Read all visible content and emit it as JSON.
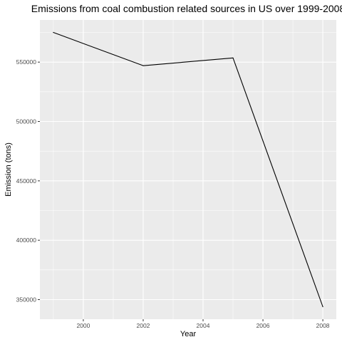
{
  "chart_data": {
    "type": "line",
    "title": "Emissions from coal combustion related sources in US over 1999-2008",
    "xlabel": "Year",
    "ylabel": "Emission (tons)",
    "x": [
      1999,
      2002,
      2005,
      2008
    ],
    "series": [
      {
        "values": [
          575000,
          547000,
          553500,
          344000
        ]
      }
    ],
    "xlim": [
      1998.55,
      2008.45
    ],
    "ylim": [
      333500,
      585500
    ],
    "x_ticks": [
      2000,
      2002,
      2004,
      2006,
      2008
    ],
    "x_tick_labels": [
      "2000",
      "2002",
      "2004",
      "2006",
      "2008"
    ],
    "y_ticks": [
      350000,
      400000,
      450000,
      500000,
      550000
    ],
    "y_tick_labels": [
      "350000",
      "400000",
      "450000",
      "500000",
      "550000"
    ],
    "grid": true,
    "colors": {
      "panel_background": "#ebebeb",
      "grid_major": "#ffffff",
      "line": "#000000"
    }
  }
}
